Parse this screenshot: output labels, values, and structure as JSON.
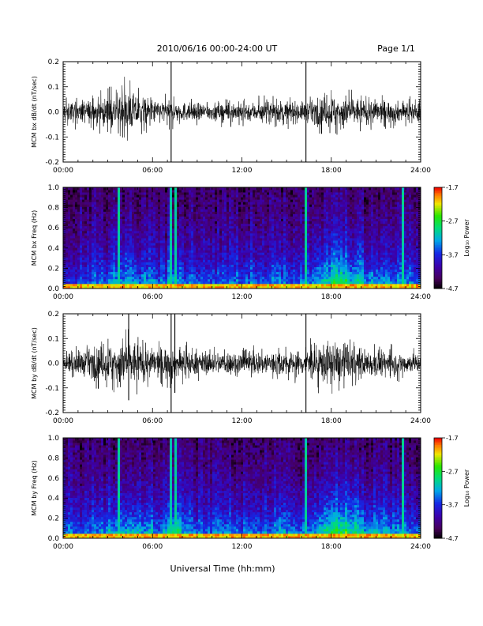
{
  "header": {
    "title": "2010/06/16  00:00-24:00 UT",
    "page": "Page 1/1"
  },
  "footer": {
    "xlabel": "Universal Time (hh:mm)"
  },
  "colors": {
    "trace": "#000000",
    "background": "#ffffff"
  },
  "chart_data": [
    {
      "type": "line",
      "title": "",
      "ylabel": "MCM bx dB/dt (nT/sec)",
      "xlabel": "",
      "x_tick_labels": [
        "00:00",
        "06:00",
        "12:00",
        "18:00",
        "24:00"
      ],
      "x_tick_values_hours": [
        0,
        6,
        12,
        18,
        24
      ],
      "xlim": [
        0,
        24
      ],
      "ylim": [
        -0.2,
        0.2
      ],
      "y_tick_values": [
        -0.2,
        -0.1,
        0.0,
        0.1,
        0.2
      ],
      "y_tick_labels": [
        "-0.2",
        "-0.1",
        "0.0",
        "0.1",
        "0.2"
      ],
      "grid": false,
      "series": [
        {
          "x_hours": [
            0,
            1,
            2,
            3,
            4,
            5,
            6,
            7,
            8,
            9,
            10,
            11,
            12,
            13,
            14,
            15,
            16,
            17,
            18,
            19,
            20,
            21,
            22,
            23,
            24
          ],
          "envelope_amplitude": [
            0.04,
            0.045,
            0.05,
            0.06,
            0.09,
            0.07,
            0.05,
            0.045,
            0.04,
            0.035,
            0.035,
            0.04,
            0.04,
            0.04,
            0.045,
            0.045,
            0.04,
            0.05,
            0.07,
            0.065,
            0.055,
            0.05,
            0.045,
            0.04,
            0.04
          ]
        }
      ],
      "spikes": [
        {
          "t_hours": 7.25,
          "max": 0.2,
          "min": -0.2
        },
        {
          "t_hours": 16.3,
          "max": 0.2,
          "min": -0.2
        }
      ]
    },
    {
      "type": "heatmap",
      "title": "",
      "ylabel": "MCM bx Freq (Hz)",
      "xlabel": "",
      "x_tick_labels": [
        "00:00",
        "06:00",
        "12:00",
        "18:00",
        "24:00"
      ],
      "x_tick_values_hours": [
        0,
        6,
        12,
        18,
        24
      ],
      "xlim": [
        0,
        24
      ],
      "ylim": [
        0.0,
        1.0
      ],
      "y_tick_values": [
        0.0,
        0.2,
        0.4,
        0.6,
        0.8,
        1.0
      ],
      "y_tick_labels": [
        "0.0",
        "0.2",
        "0.4",
        "0.6",
        "0.8",
        "1.0"
      ],
      "colorbar": {
        "label": "Log₁₀ Power",
        "range": [
          -4.7,
          -1.7
        ],
        "tick_values": [
          -1.7,
          -2.7,
          -3.7,
          -4.7
        ],
        "tick_labels": [
          "-1.7",
          "-2.7",
          "-3.7",
          "-4.7"
        ]
      },
      "activity_by_hour": [
        0.35,
        0.4,
        0.45,
        0.55,
        0.6,
        0.55,
        0.45,
        0.7,
        0.45,
        0.4,
        0.4,
        0.45,
        0.45,
        0.4,
        0.5,
        0.45,
        0.5,
        0.7,
        0.85,
        0.75,
        0.6,
        0.55,
        0.5,
        0.45
      ],
      "broadband_streaks_hours": [
        3.7,
        7.3,
        7.6,
        16.3,
        22.8
      ]
    },
    {
      "type": "line",
      "title": "",
      "ylabel": "MCM by dB/dt (nT/sec)",
      "xlabel": "",
      "x_tick_labels": [
        "00:00",
        "06:00",
        "12:00",
        "18:00",
        "24:00"
      ],
      "x_tick_values_hours": [
        0,
        6,
        12,
        18,
        24
      ],
      "xlim": [
        0,
        24
      ],
      "ylim": [
        -0.2,
        0.2
      ],
      "y_tick_values": [
        -0.2,
        -0.1,
        0.0,
        0.1,
        0.2
      ],
      "y_tick_labels": [
        "-0.2",
        "-0.1",
        "0.0",
        "0.1",
        "0.2"
      ],
      "grid": false,
      "series": [
        {
          "x_hours": [
            0,
            1,
            2,
            3,
            4,
            5,
            6,
            7,
            8,
            9,
            10,
            11,
            12,
            13,
            14,
            15,
            16,
            17,
            18,
            19,
            20,
            21,
            22,
            23,
            24
          ],
          "envelope_amplitude": [
            0.04,
            0.05,
            0.06,
            0.08,
            0.1,
            0.09,
            0.06,
            0.07,
            0.06,
            0.045,
            0.045,
            0.05,
            0.05,
            0.05,
            0.055,
            0.05,
            0.055,
            0.075,
            0.09,
            0.075,
            0.06,
            0.055,
            0.05,
            0.045,
            0.04
          ]
        }
      ],
      "spikes": [
        {
          "t_hours": 4.4,
          "max": 0.2,
          "min": -0.15
        },
        {
          "t_hours": 7.25,
          "max": 0.2,
          "min": -0.2
        },
        {
          "t_hours": 7.5,
          "max": 0.2,
          "min": -0.12
        },
        {
          "t_hours": 16.3,
          "max": 0.2,
          "min": -0.2
        }
      ]
    },
    {
      "type": "heatmap",
      "title": "",
      "ylabel": "MCM by Freq (Hz)",
      "xlabel": "",
      "x_tick_labels": [
        "00:00",
        "06:00",
        "12:00",
        "18:00",
        "24:00"
      ],
      "x_tick_values_hours": [
        0,
        6,
        12,
        18,
        24
      ],
      "xlim": [
        0,
        24
      ],
      "ylim": [
        0.0,
        1.0
      ],
      "y_tick_values": [
        0.0,
        0.2,
        0.4,
        0.6,
        0.8,
        1.0
      ],
      "y_tick_labels": [
        "0.0",
        "0.2",
        "0.4",
        "0.6",
        "0.8",
        "1.0"
      ],
      "colorbar": {
        "label": "Log₁₀ Power",
        "range": [
          -4.7,
          -1.7
        ],
        "tick_values": [
          -1.7,
          -2.7,
          -3.7,
          -4.7
        ],
        "tick_labels": [
          "-1.7",
          "-2.7",
          "-3.7",
          "-4.7"
        ]
      },
      "activity_by_hour": [
        0.4,
        0.45,
        0.5,
        0.6,
        0.65,
        0.6,
        0.5,
        0.75,
        0.5,
        0.45,
        0.45,
        0.55,
        0.5,
        0.45,
        0.55,
        0.5,
        0.55,
        0.75,
        0.9,
        0.8,
        0.65,
        0.6,
        0.55,
        0.5
      ],
      "broadband_streaks_hours": [
        3.7,
        7.3,
        7.6,
        16.3,
        22.8
      ]
    }
  ]
}
